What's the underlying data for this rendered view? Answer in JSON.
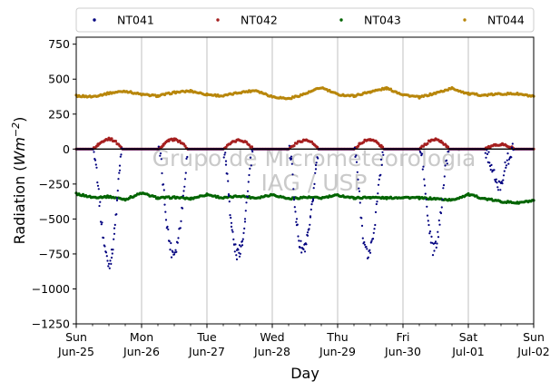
{
  "chart_data": {
    "type": "scatter",
    "title": "",
    "xlabel": "Day",
    "ylabel_text": "Radiation (",
    "ylabel_unit": "Wm",
    "ylabel_exp": "−2",
    "ylabel_close": ")",
    "ylim": [
      -1250,
      800
    ],
    "yticks": [
      -1250,
      -1000,
      -750,
      -500,
      -250,
      0,
      250,
      500,
      750
    ],
    "ytick_labels": [
      "−1250",
      "−1000",
      "−750",
      "−500",
      "−250",
      "0",
      "250",
      "500",
      "750"
    ],
    "xlim": [
      "2017-06-25",
      "2017-07-02"
    ],
    "xticks": [
      {
        "weekday": "Sun",
        "date": "Jun-25"
      },
      {
        "weekday": "Mon",
        "date": "Jun-26"
      },
      {
        "weekday": "Tue",
        "date": "Jun-27"
      },
      {
        "weekday": "Wed",
        "date": "Jun-28"
      },
      {
        "weekday": "Thu",
        "date": "Jun-29"
      },
      {
        "weekday": "Fri",
        "date": "Jun-30"
      },
      {
        "weekday": "Sat",
        "date": "Jul-01"
      },
      {
        "weekday": "Sun",
        "date": "Jul-02"
      }
    ],
    "grid": "vertical",
    "legend_placement": "top",
    "watermark": [
      "Grupo de Micrometeorologia",
      "IAG / USP"
    ],
    "series": [
      {
        "name": "NT041",
        "color": "#00007f",
        "x_day_hour": [
          [
            0,
            0,
            0
          ],
          [
            0,
            6,
            0
          ],
          [
            0,
            7,
            -40
          ],
          [
            0,
            8,
            -250
          ],
          [
            0,
            9,
            -480
          ],
          [
            0,
            10,
            -640
          ],
          [
            0,
            11,
            -760
          ],
          [
            0,
            12,
            -830
          ],
          [
            0,
            13,
            -760
          ],
          [
            0,
            14,
            -600
          ],
          [
            0,
            15,
            -380
          ],
          [
            0,
            16,
            -120
          ],
          [
            0,
            17,
            0
          ],
          [
            1,
            6,
            0
          ],
          [
            1,
            7,
            -60
          ],
          [
            1,
            8,
            -280
          ],
          [
            1,
            9,
            -480
          ],
          [
            1,
            10,
            -640
          ],
          [
            1,
            11,
            -730
          ],
          [
            1,
            12,
            -740
          ],
          [
            1,
            13,
            -680
          ],
          [
            1,
            14,
            -560
          ],
          [
            1,
            15,
            -400
          ],
          [
            1,
            16,
            -180
          ],
          [
            1,
            17,
            0
          ],
          [
            2,
            6,
            0
          ],
          [
            2,
            7,
            -80
          ],
          [
            2,
            8,
            -320
          ],
          [
            2,
            9,
            -540
          ],
          [
            2,
            10,
            -690
          ],
          [
            2,
            11,
            -750
          ],
          [
            2,
            12,
            -730
          ],
          [
            2,
            13,
            -650
          ],
          [
            2,
            14,
            -500
          ],
          [
            2,
            15,
            -300
          ],
          [
            2,
            16,
            -100
          ],
          [
            2,
            17,
            0
          ],
          [
            3,
            6,
            0
          ],
          [
            3,
            7,
            -80
          ],
          [
            3,
            8,
            -320
          ],
          [
            3,
            9,
            -540
          ],
          [
            3,
            10,
            -680
          ],
          [
            3,
            11,
            -720
          ],
          [
            3,
            12,
            -710
          ],
          [
            3,
            13,
            -640
          ],
          [
            3,
            14,
            -520
          ],
          [
            3,
            15,
            -340
          ],
          [
            3,
            16,
            -130
          ],
          [
            3,
            17,
            0
          ],
          [
            4,
            6,
            0
          ],
          [
            4,
            7,
            -100
          ],
          [
            4,
            8,
            -340
          ],
          [
            4,
            9,
            -560
          ],
          [
            4,
            10,
            -700
          ],
          [
            4,
            11,
            -760
          ],
          [
            4,
            12,
            -720
          ],
          [
            4,
            13,
            -620
          ],
          [
            4,
            14,
            -470
          ],
          [
            4,
            15,
            -290
          ],
          [
            4,
            16,
            -100
          ],
          [
            4,
            17,
            0
          ],
          [
            5,
            6,
            0
          ],
          [
            5,
            7,
            -60
          ],
          [
            5,
            8,
            -260
          ],
          [
            5,
            9,
            -480
          ],
          [
            5,
            10,
            -620
          ],
          [
            5,
            11,
            -720
          ],
          [
            5,
            12,
            -700
          ],
          [
            5,
            13,
            -600
          ],
          [
            5,
            14,
            -420
          ],
          [
            5,
            15,
            -240
          ],
          [
            5,
            16,
            -80
          ],
          [
            5,
            17,
            0
          ],
          [
            6,
            6,
            0
          ],
          [
            6,
            7,
            -40
          ],
          [
            6,
            8,
            -90
          ],
          [
            6,
            9,
            -160
          ],
          [
            6,
            10,
            -220
          ],
          [
            6,
            11,
            -280
          ],
          [
            6,
            12,
            -240
          ],
          [
            6,
            13,
            -170
          ],
          [
            6,
            14,
            -100
          ],
          [
            6,
            15,
            -50
          ],
          [
            6,
            16,
            -10
          ],
          [
            6,
            17,
            0
          ],
          [
            7,
            0,
            0
          ]
        ]
      },
      {
        "name": "NT042",
        "color": "#a51f1f",
        "x_day_hour": [
          [
            0,
            0,
            0
          ],
          [
            0,
            6,
            0
          ],
          [
            0,
            8,
            30
          ],
          [
            0,
            10,
            60
          ],
          [
            0,
            12,
            75
          ],
          [
            0,
            14,
            60
          ],
          [
            0,
            16,
            25
          ],
          [
            0,
            17,
            0
          ],
          [
            1,
            6,
            0
          ],
          [
            1,
            8,
            30
          ],
          [
            1,
            10,
            60
          ],
          [
            1,
            12,
            70
          ],
          [
            1,
            14,
            55
          ],
          [
            1,
            16,
            20
          ],
          [
            1,
            17,
            0
          ],
          [
            2,
            6,
            0
          ],
          [
            2,
            8,
            30
          ],
          [
            2,
            10,
            55
          ],
          [
            2,
            12,
            65
          ],
          [
            2,
            14,
            55
          ],
          [
            2,
            16,
            20
          ],
          [
            2,
            17,
            0
          ],
          [
            3,
            6,
            0
          ],
          [
            3,
            8,
            30
          ],
          [
            3,
            10,
            55
          ],
          [
            3,
            12,
            65
          ],
          [
            3,
            14,
            55
          ],
          [
            3,
            16,
            20
          ],
          [
            3,
            17,
            0
          ],
          [
            4,
            6,
            0
          ],
          [
            4,
            8,
            35
          ],
          [
            4,
            10,
            60
          ],
          [
            4,
            12,
            70
          ],
          [
            4,
            14,
            55
          ],
          [
            4,
            16,
            20
          ],
          [
            4,
            17,
            0
          ],
          [
            5,
            6,
            0
          ],
          [
            5,
            8,
            30
          ],
          [
            5,
            10,
            60
          ],
          [
            5,
            12,
            70
          ],
          [
            5,
            14,
            55
          ],
          [
            5,
            16,
            20
          ],
          [
            5,
            17,
            0
          ],
          [
            6,
            6,
            0
          ],
          [
            6,
            8,
            15
          ],
          [
            6,
            10,
            30
          ],
          [
            6,
            12,
            35
          ],
          [
            6,
            14,
            25
          ],
          [
            6,
            16,
            10
          ],
          [
            6,
            17,
            0
          ],
          [
            7,
            0,
            0
          ]
        ]
      },
      {
        "name": "NT043",
        "color": "#006400",
        "x_day_hour": [
          [
            0,
            0,
            -320
          ],
          [
            0,
            6,
            -345
          ],
          [
            0,
            12,
            -340
          ],
          [
            0,
            18,
            -360
          ],
          [
            1,
            0,
            -315
          ],
          [
            1,
            6,
            -350
          ],
          [
            1,
            12,
            -345
          ],
          [
            1,
            18,
            -355
          ],
          [
            2,
            0,
            -325
          ],
          [
            2,
            6,
            -350
          ],
          [
            2,
            12,
            -335
          ],
          [
            2,
            18,
            -350
          ],
          [
            3,
            0,
            -325
          ],
          [
            3,
            6,
            -355
          ],
          [
            3,
            12,
            -345
          ],
          [
            3,
            18,
            -350
          ],
          [
            4,
            0,
            -330
          ],
          [
            4,
            6,
            -350
          ],
          [
            4,
            12,
            -345
          ],
          [
            4,
            18,
            -350
          ],
          [
            5,
            0,
            -345
          ],
          [
            5,
            6,
            -350
          ],
          [
            5,
            12,
            -355
          ],
          [
            5,
            18,
            -365
          ],
          [
            6,
            0,
            -325
          ],
          [
            6,
            6,
            -355
          ],
          [
            6,
            12,
            -375
          ],
          [
            6,
            18,
            -385
          ],
          [
            7,
            0,
            -370
          ]
        ]
      },
      {
        "name": "NT044",
        "color": "#b8860b",
        "x_day_hour": [
          [
            0,
            0,
            380
          ],
          [
            0,
            6,
            375
          ],
          [
            0,
            12,
            400
          ],
          [
            0,
            18,
            415
          ],
          [
            1,
            0,
            390
          ],
          [
            1,
            6,
            380
          ],
          [
            1,
            12,
            405
          ],
          [
            1,
            18,
            415
          ],
          [
            2,
            0,
            390
          ],
          [
            2,
            6,
            380
          ],
          [
            2,
            12,
            405
          ],
          [
            2,
            18,
            420
          ],
          [
            3,
            0,
            375
          ],
          [
            3,
            6,
            360
          ],
          [
            3,
            12,
            395
          ],
          [
            3,
            18,
            440
          ],
          [
            4,
            0,
            390
          ],
          [
            4,
            6,
            380
          ],
          [
            4,
            12,
            410
          ],
          [
            4,
            18,
            435
          ],
          [
            5,
            0,
            390
          ],
          [
            5,
            6,
            370
          ],
          [
            5,
            12,
            400
          ],
          [
            5,
            18,
            435
          ],
          [
            6,
            0,
            395
          ],
          [
            6,
            6,
            385
          ],
          [
            6,
            12,
            395
          ],
          [
            6,
            18,
            395
          ],
          [
            7,
            0,
            375
          ]
        ]
      }
    ]
  }
}
